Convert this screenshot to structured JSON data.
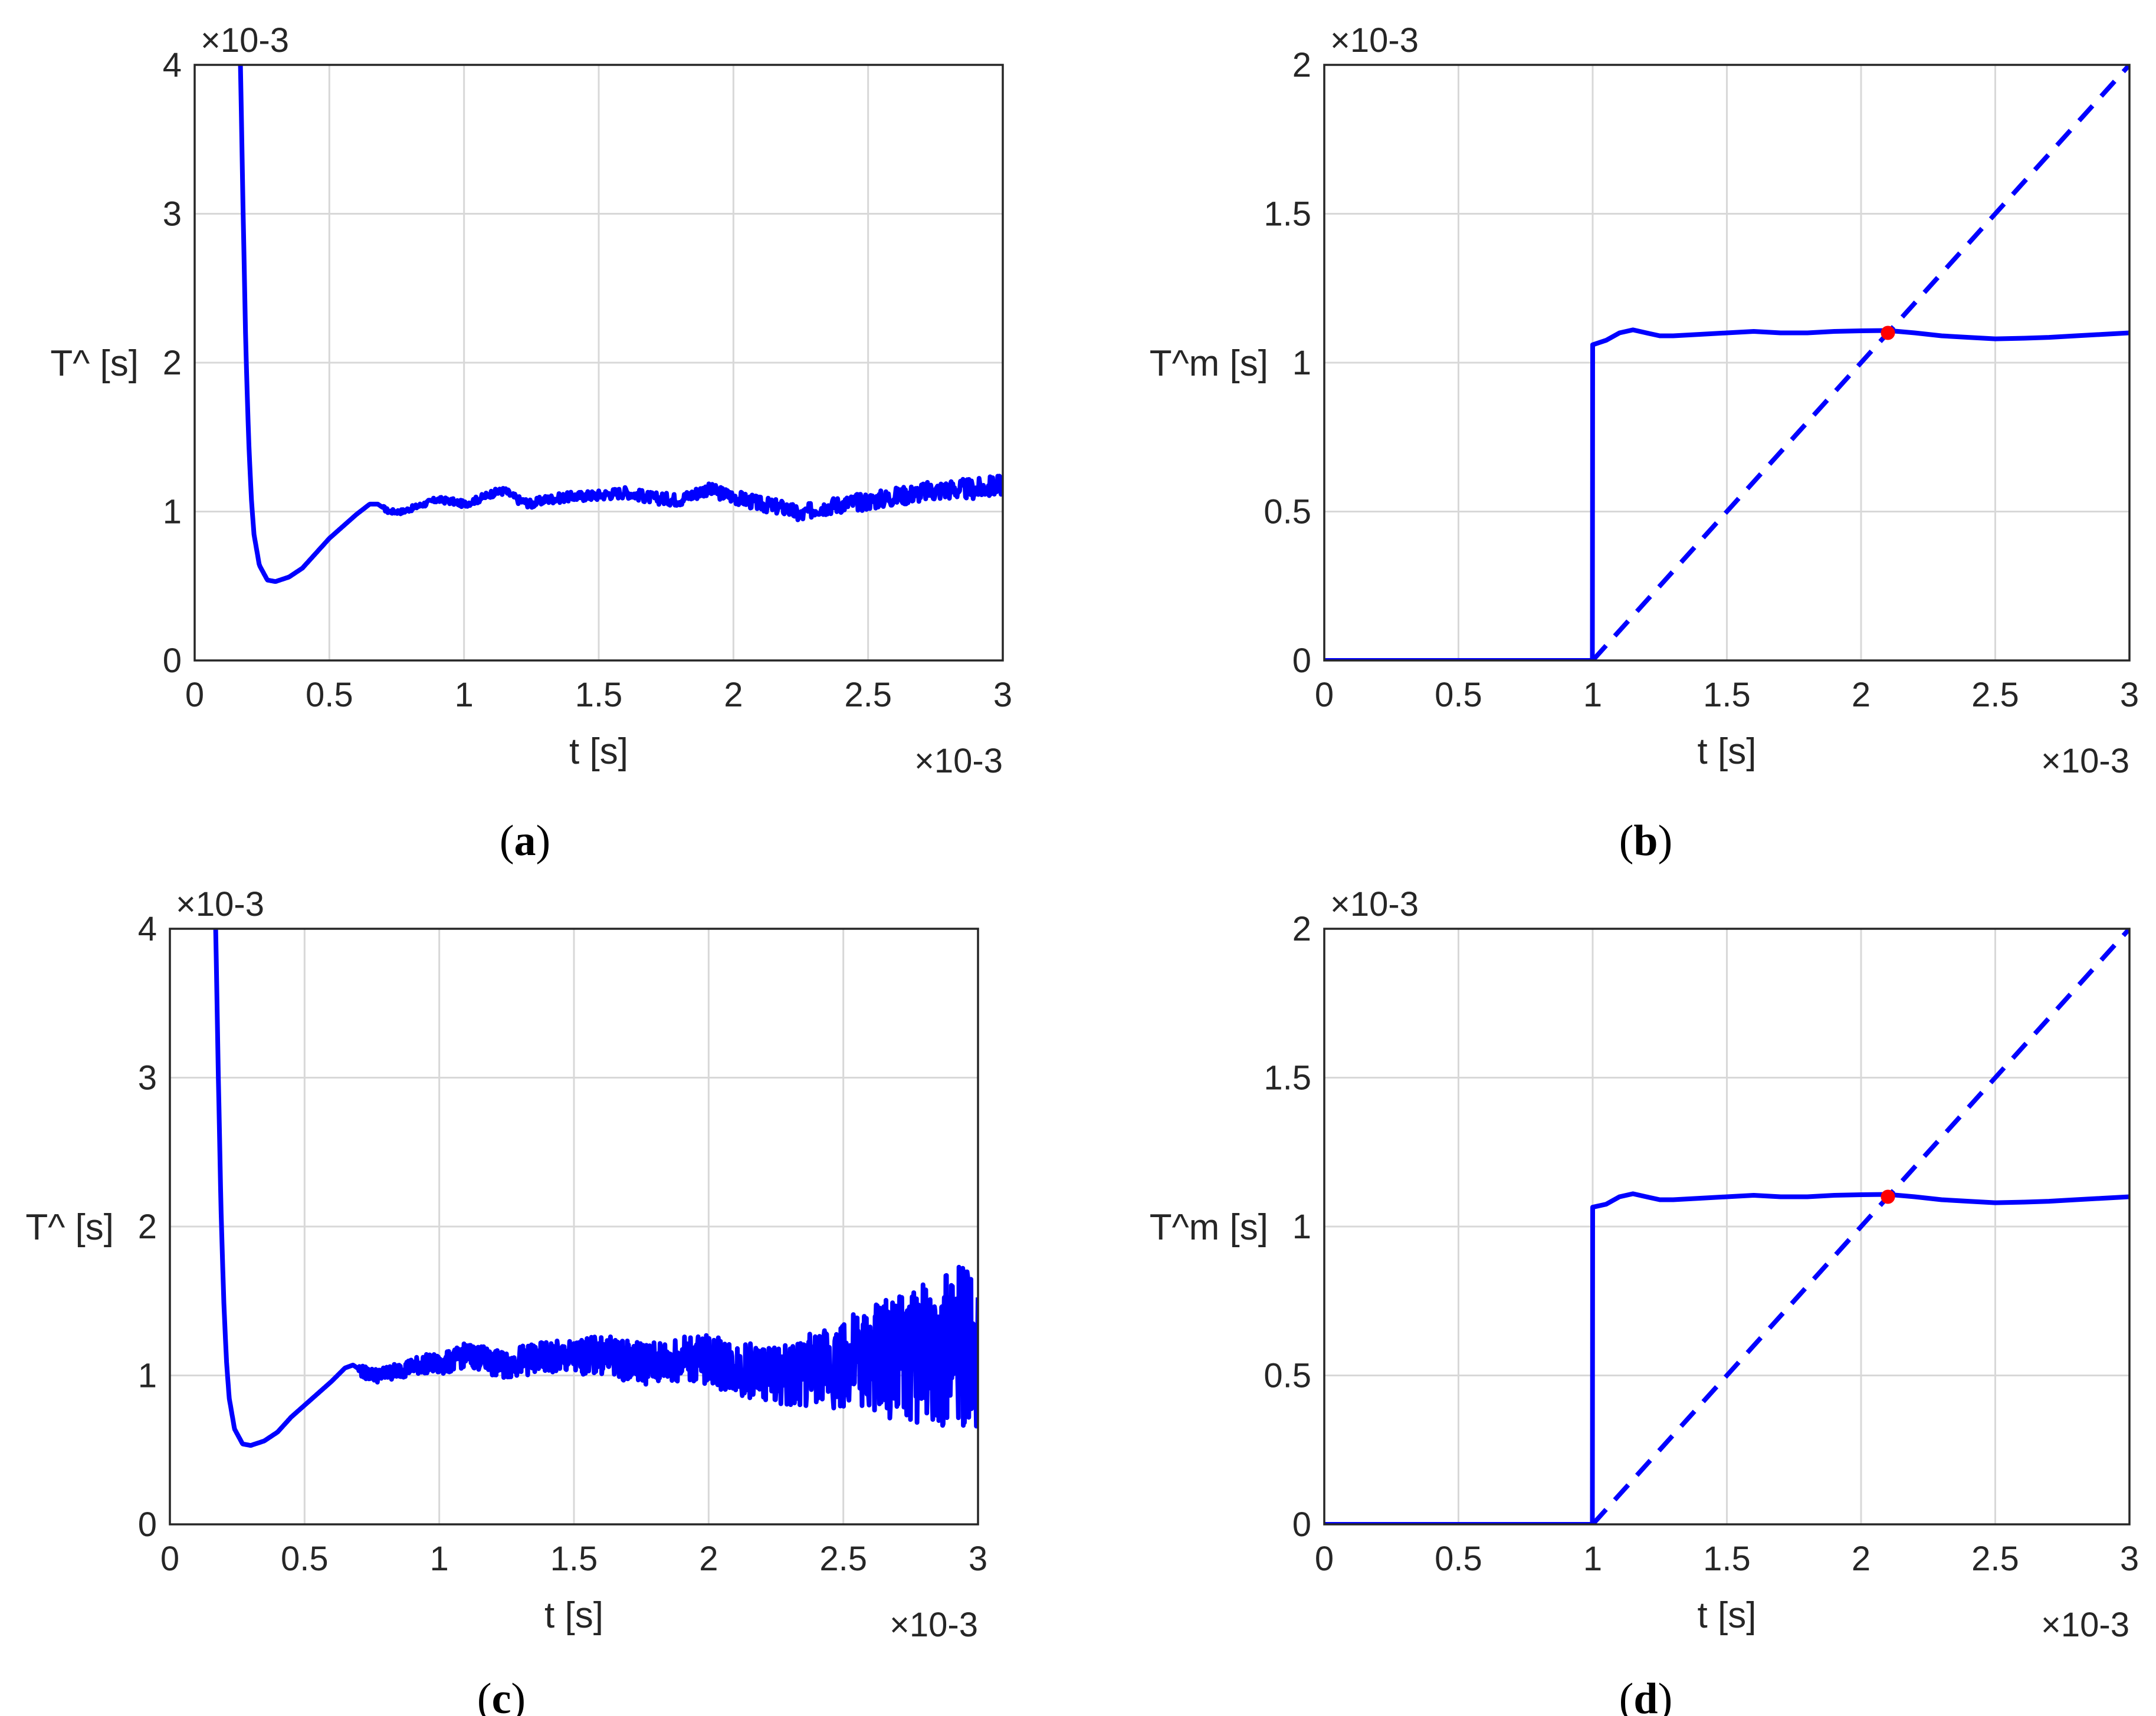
{
  "colors": {
    "line": "#0000ff",
    "marker": "#ff0000",
    "grid": "#d8d8d8",
    "axes": "#262626"
  },
  "chart_data": [
    {
      "panel": "a",
      "type": "line",
      "caption": {
        "open": "(",
        "letter": "a",
        "close": ")"
      },
      "xlabel": "t [s]",
      "ylabel": "T^ [s]",
      "x_exponent": "×10-3",
      "y_exponent": "×10-3",
      "xlim": [
        0,
        3
      ],
      "ylim": [
        0,
        4
      ],
      "xticks": [
        "0",
        "0.5",
        "1",
        "1.5",
        "2",
        "2.5",
        "3"
      ],
      "yticks": [
        "0",
        "1",
        "2",
        "3",
        "4"
      ],
      "grid": true,
      "noise": "low",
      "series": [
        {
          "style": "solid",
          "x": [
            0.17,
            0.18,
            0.19,
            0.2,
            0.21,
            0.22,
            0.24,
            0.27,
            0.3,
            0.35,
            0.4,
            0.45,
            0.5,
            0.55,
            0.6,
            0.65,
            0.68,
            0.72,
            0.77,
            0.82,
            0.9,
            0.95,
            1.0,
            1.05,
            1.1,
            1.15,
            1.2,
            1.25,
            1.3,
            1.4,
            1.5,
            1.6,
            1.7,
            1.8,
            1.9,
            2.0,
            2.1,
            2.2,
            2.25,
            2.3,
            2.4,
            2.5,
            2.6,
            2.7,
            2.8,
            2.9,
            3.0
          ],
          "y": [
            4.0,
            3.0,
            2.1,
            1.5,
            1.1,
            0.85,
            0.64,
            0.54,
            0.53,
            0.56,
            0.62,
            0.72,
            0.82,
            0.9,
            0.98,
            1.05,
            1.05,
            1.0,
            1.0,
            1.03,
            1.08,
            1.07,
            1.05,
            1.08,
            1.12,
            1.14,
            1.08,
            1.05,
            1.08,
            1.1,
            1.11,
            1.13,
            1.09,
            1.08,
            1.15,
            1.1,
            1.05,
            1.02,
            0.97,
            1.02,
            1.05,
            1.07,
            1.1,
            1.13,
            1.15,
            1.15,
            1.18
          ]
        }
      ]
    },
    {
      "panel": "b",
      "type": "line",
      "caption": {
        "open": "(",
        "letter": "b",
        "close": ")"
      },
      "xlabel": "t [s]",
      "ylabel": "T^m [s]",
      "x_exponent": "×10-3",
      "y_exponent": "×10-3",
      "xlim": [
        0,
        3
      ],
      "ylim": [
        0,
        2
      ],
      "xticks": [
        "0",
        "0.5",
        "1",
        "1.5",
        "2",
        "2.5",
        "3"
      ],
      "yticks": [
        "0",
        "0.5",
        "1",
        "1.5",
        "2"
      ],
      "grid": true,
      "series": [
        {
          "style": "solid",
          "x": [
            0,
            0.999,
            1.0,
            1.05,
            1.1,
            1.15,
            1.2,
            1.25,
            1.3,
            1.4,
            1.5,
            1.6,
            1.7,
            1.8,
            1.9,
            2.0,
            2.1,
            2.2,
            2.3,
            2.4,
            2.5,
            2.6,
            2.7,
            2.8,
            2.9,
            3.0
          ],
          "y": [
            0,
            0,
            1.06,
            1.075,
            1.1,
            1.11,
            1.1,
            1.09,
            1.09,
            1.095,
            1.1,
            1.105,
            1.1,
            1.1,
            1.105,
            1.107,
            1.108,
            1.1,
            1.09,
            1.085,
            1.08,
            1.082,
            1.085,
            1.09,
            1.095,
            1.1
          ]
        },
        {
          "style": "dashed",
          "x": [
            1.0,
            3.0
          ],
          "y": [
            0,
            2.0
          ]
        }
      ],
      "marker": {
        "x": 2.1,
        "y": 1.1
      }
    },
    {
      "panel": "c",
      "type": "line",
      "caption": {
        "open": "(",
        "letter": "c",
        "close": ")"
      },
      "xlabel": "t [s]",
      "ylabel": "T^ [s]",
      "x_exponent": "×10-3",
      "y_exponent": "×10-3",
      "xlim": [
        0,
        3
      ],
      "ylim": [
        0,
        4
      ],
      "xticks": [
        "0",
        "0.5",
        "1",
        "1.5",
        "2",
        "2.5",
        "3"
      ],
      "yticks": [
        "0",
        "1",
        "2",
        "3",
        "4"
      ],
      "grid": true,
      "noise": "high",
      "series": [
        {
          "style": "solid",
          "x": [
            0.17,
            0.18,
            0.19,
            0.2,
            0.21,
            0.22,
            0.24,
            0.27,
            0.3,
            0.35,
            0.4,
            0.45,
            0.5,
            0.55,
            0.6,
            0.65,
            0.68,
            0.72,
            0.77,
            0.82,
            0.9,
            0.95,
            1.0,
            1.05,
            1.1,
            1.15,
            1.2,
            1.25,
            1.3,
            1.4,
            1.5,
            1.6,
            1.7,
            1.8,
            1.9,
            2.0,
            2.1,
            2.2,
            2.3,
            2.4,
            2.5,
            2.6,
            2.7,
            2.8,
            2.9,
            3.0
          ],
          "y": [
            4.0,
            3.0,
            2.1,
            1.5,
            1.1,
            0.85,
            0.64,
            0.54,
            0.53,
            0.56,
            0.62,
            0.72,
            0.8,
            0.88,
            0.96,
            1.05,
            1.07,
            1.02,
            1.0,
            1.02,
            1.06,
            1.08,
            1.07,
            1.1,
            1.14,
            1.12,
            1.08,
            1.07,
            1.1,
            1.12,
            1.12,
            1.14,
            1.1,
            1.08,
            1.12,
            1.1,
            1.05,
            1.02,
            1.0,
            1.05,
            1.08,
            1.1,
            1.12,
            1.15,
            1.18,
            1.22
          ]
        }
      ]
    },
    {
      "panel": "d",
      "type": "line",
      "caption": {
        "open": "(",
        "letter": "d",
        "close": ")"
      },
      "xlabel": "t [s]",
      "ylabel": "T^m [s]",
      "x_exponent": "×10-3",
      "y_exponent": "×10-3",
      "xlim": [
        0,
        3
      ],
      "ylim": [
        0,
        2
      ],
      "xticks": [
        "0",
        "0.5",
        "1",
        "1.5",
        "2",
        "2.5",
        "3"
      ],
      "yticks": [
        "0",
        "0.5",
        "1",
        "1.5",
        "2"
      ],
      "grid": true,
      "series": [
        {
          "style": "solid",
          "x": [
            0,
            0.999,
            1.0,
            1.05,
            1.1,
            1.15,
            1.2,
            1.25,
            1.3,
            1.4,
            1.5,
            1.6,
            1.7,
            1.8,
            1.9,
            2.0,
            2.1,
            2.2,
            2.3,
            2.4,
            2.5,
            2.6,
            2.7,
            2.8,
            2.9,
            3.0
          ],
          "y": [
            0,
            0,
            1.065,
            1.075,
            1.1,
            1.11,
            1.1,
            1.09,
            1.09,
            1.095,
            1.1,
            1.105,
            1.1,
            1.1,
            1.105,
            1.107,
            1.108,
            1.1,
            1.09,
            1.085,
            1.08,
            1.082,
            1.085,
            1.09,
            1.095,
            1.1
          ]
        },
        {
          "style": "dashed",
          "x": [
            1.0,
            3.0
          ],
          "y": [
            0,
            2.0
          ]
        }
      ],
      "marker": {
        "x": 2.1,
        "y": 1.1
      }
    }
  ]
}
